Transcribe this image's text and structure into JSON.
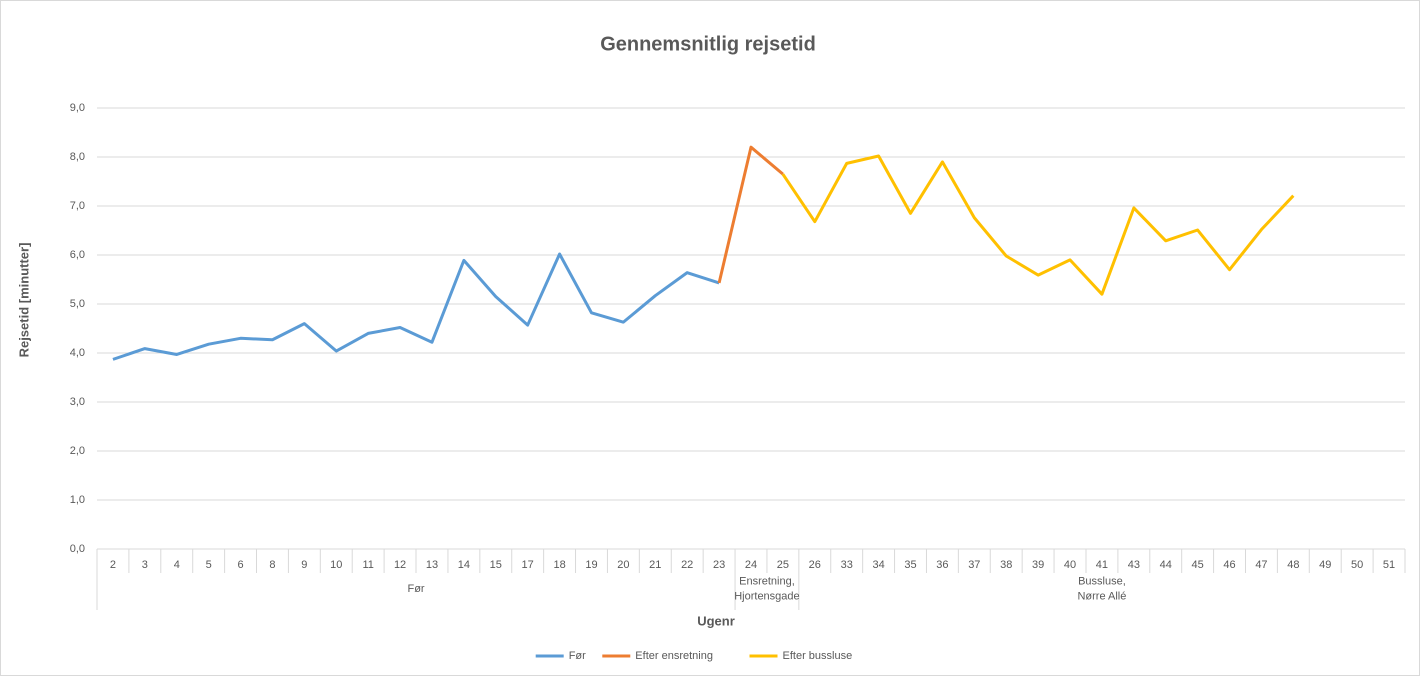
{
  "chart_data": {
    "type": "line",
    "title": "Gennemsnitlig rejsetid",
    "y_label": "Rejsetid [minutter]",
    "x_label": "Ugenr",
    "categories": [
      "2",
      "3",
      "4",
      "5",
      "6",
      "8",
      "9",
      "10",
      "11",
      "12",
      "13",
      "14",
      "15",
      "17",
      "18",
      "19",
      "20",
      "21",
      "22",
      "23",
      "24",
      "25",
      "26",
      "33",
      "34",
      "35",
      "36",
      "37",
      "38",
      "39",
      "40",
      "41",
      "43",
      "44",
      "45",
      "46",
      "47",
      "48",
      "49",
      "50",
      "51"
    ],
    "groups": [
      {
        "lines": [
          "Før"
        ],
        "start": 0,
        "end": 19
      },
      {
        "lines": [
          "Ensretning,",
          "Hjortensgade"
        ],
        "start": 20,
        "end": 21
      },
      {
        "lines": [
          "Bussluse,",
          "Nørre Allé"
        ],
        "start": 22,
        "end": 40
      }
    ],
    "series": [
      {
        "name": "Før",
        "color": "#5b9bd5",
        "values": [
          3.87,
          4.09,
          3.97,
          4.18,
          4.3,
          4.27,
          4.6,
          4.04,
          4.4,
          4.52,
          4.22,
          5.89,
          5.15,
          4.57,
          6.02,
          4.82,
          4.63,
          5.17,
          5.64,
          5.43,
          null,
          null,
          null,
          null,
          null,
          null,
          null,
          null,
          null,
          null,
          null,
          null,
          null,
          null,
          null,
          null,
          null,
          null,
          null,
          null,
          null
        ]
      },
      {
        "name": "Efter ensretning",
        "color": "#ed7d31",
        "values": [
          null,
          null,
          null,
          null,
          null,
          null,
          null,
          null,
          null,
          null,
          null,
          null,
          null,
          null,
          null,
          null,
          null,
          null,
          null,
          5.43,
          8.2,
          7.65,
          null,
          null,
          null,
          null,
          null,
          null,
          null,
          null,
          null,
          null,
          null,
          null,
          null,
          null,
          null,
          null,
          null,
          null,
          null
        ]
      },
      {
        "name": "Efter bussluse",
        "color": "#ffc000",
        "values": [
          null,
          null,
          null,
          null,
          null,
          null,
          null,
          null,
          null,
          null,
          null,
          null,
          null,
          null,
          null,
          null,
          null,
          null,
          null,
          null,
          null,
          7.65,
          6.68,
          7.87,
          8.02,
          6.85,
          7.9,
          6.76,
          5.98,
          5.59,
          5.9,
          5.2,
          6.96,
          6.29,
          6.51,
          5.7,
          6.52,
          7.21,
          null,
          null,
          null
        ]
      }
    ],
    "ylim": [
      0,
      9
    ],
    "yticks": [
      {
        "value": 0,
        "label": "0,0"
      },
      {
        "value": 1,
        "label": "1,0"
      },
      {
        "value": 2,
        "label": "2,0"
      },
      {
        "value": 3,
        "label": "3,0"
      },
      {
        "value": 4,
        "label": "4,0"
      },
      {
        "value": 5,
        "label": "5,0"
      },
      {
        "value": 6,
        "label": "6,0"
      },
      {
        "value": 7,
        "label": "7,0"
      },
      {
        "value": 8,
        "label": "8,0"
      },
      {
        "value": 9,
        "label": "9,0"
      }
    ],
    "grid": true,
    "legend": "bottom"
  }
}
